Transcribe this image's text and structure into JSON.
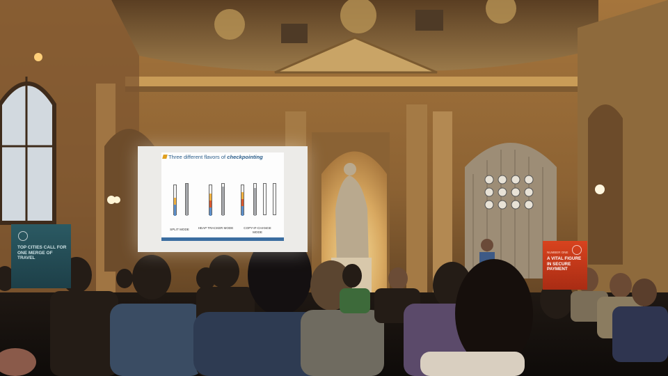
{
  "slide": {
    "title_prefix": "Three different flavors of ",
    "title_emphasis": "checkpointing",
    "modes": [
      {
        "label": "SPLIT MODE"
      },
      {
        "label": "HEAP TRACKER MODE"
      },
      {
        "label": "COPY-IF-CHANGE MODE"
      }
    ]
  },
  "banners": {
    "left": {
      "text": "TOP CITIES CALL FOR ONE MERGE OF TRAVEL"
    },
    "right": {
      "kicker": "NUMBER ONE",
      "text": "A VITAL FIGURE IN SECURE PAYMENT"
    }
  },
  "colors": {
    "slide_title": "#2a5d8a",
    "slide_footer": "#3b6da0",
    "banner_left": "#2b5a63",
    "banner_right": "#d8431e"
  }
}
